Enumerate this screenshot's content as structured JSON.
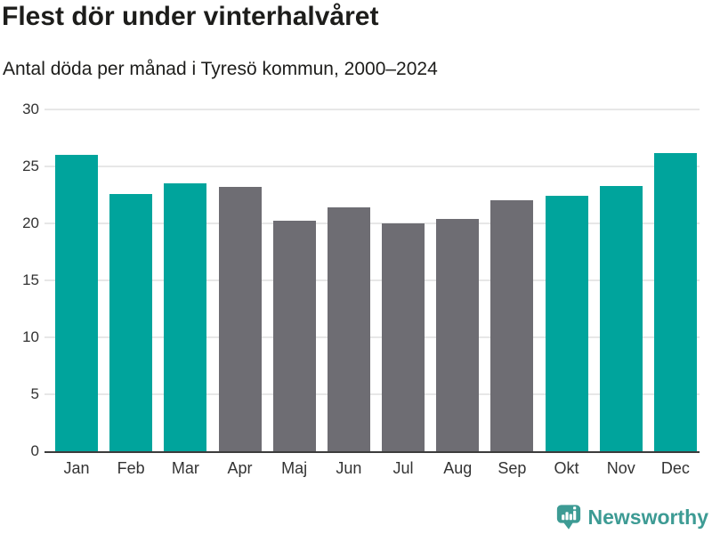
{
  "header": {
    "title": "Flest dör under vinterhalvåret",
    "subtitle": "Antal döda per månad i Tyresö kommun, 2000–2024"
  },
  "chart_data": {
    "type": "bar",
    "title": "Flest dör under vinterhalvåret",
    "subtitle": "Antal döda per månad i Tyresö kommun, 2000–2024",
    "categories": [
      "Jan",
      "Feb",
      "Mar",
      "Apr",
      "Maj",
      "Jun",
      "Jul",
      "Aug",
      "Sep",
      "Okt",
      "Nov",
      "Dec"
    ],
    "values": [
      26.0,
      22.6,
      23.5,
      23.2,
      20.2,
      21.4,
      20.0,
      20.4,
      22.0,
      22.4,
      23.3,
      26.2
    ],
    "bar_colors": [
      "winter",
      "winter",
      "winter",
      "summer",
      "summer",
      "summer",
      "summer",
      "summer",
      "summer",
      "winter",
      "winter",
      "winter"
    ],
    "palette": {
      "winter": "#00a49c",
      "summer": "#6e6d73"
    },
    "xlabel": "",
    "ylabel": "",
    "ylim": [
      0,
      30
    ],
    "yticks": [
      30,
      25,
      20,
      15,
      10,
      5,
      0
    ],
    "grid": true,
    "legend_position": "none",
    "gridline_color": "#e7e7e7",
    "axis_line_color": "#3c3c3c",
    "tick_label_color": "#333333"
  },
  "footer": {
    "brand": "Newsworthy",
    "brand_color": "#3d9b94",
    "logo_icon": "bar-chart-speech-bubble-icon"
  }
}
